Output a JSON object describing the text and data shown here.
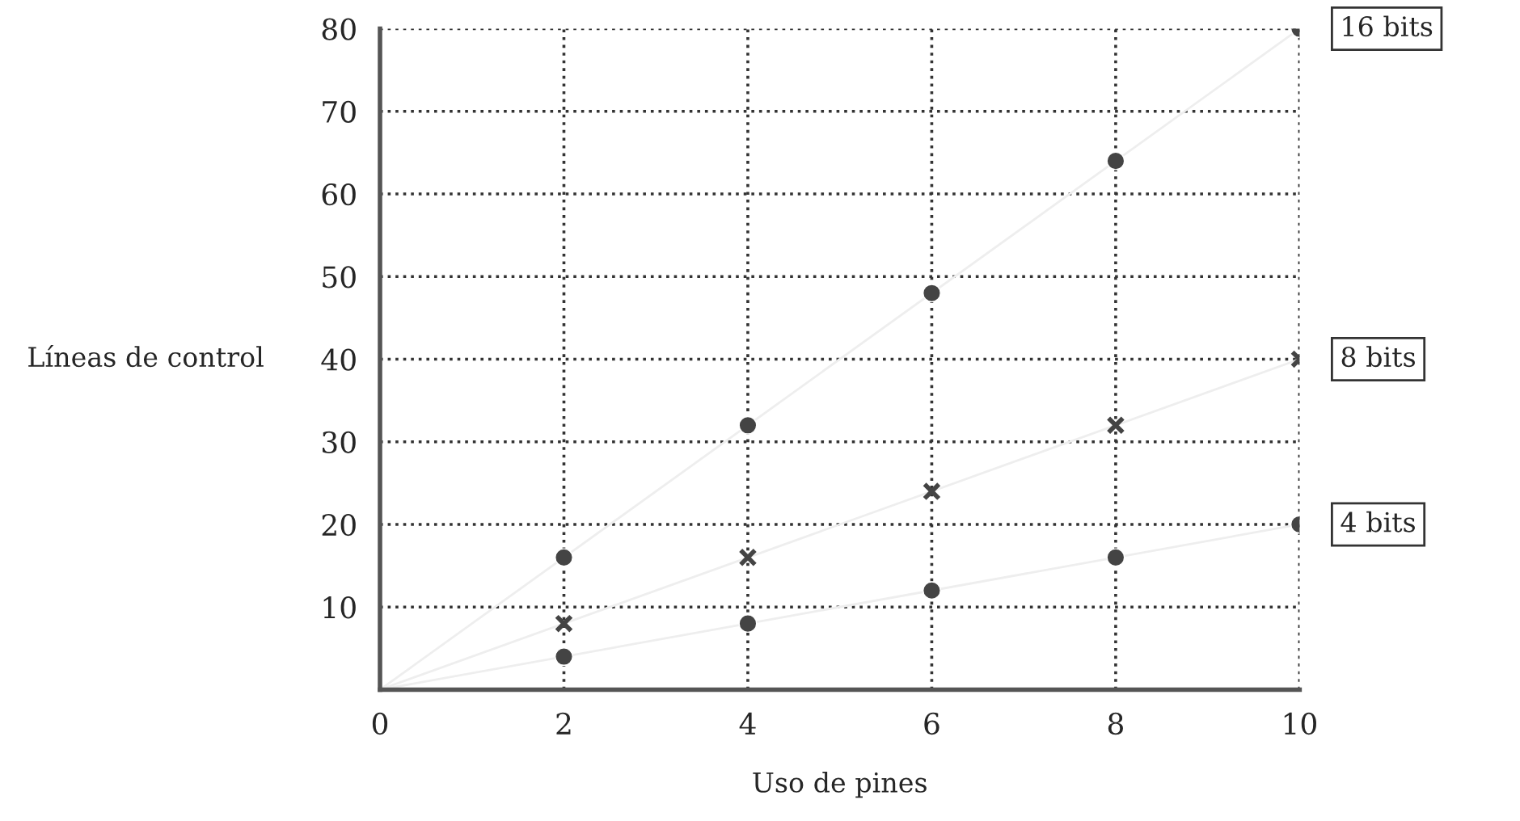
{
  "chart_data": {
    "type": "scatter",
    "xlabel": "Uso de pines",
    "ylabel": "Líneas de control",
    "xlim": [
      0,
      10
    ],
    "ylim": [
      0,
      80
    ],
    "xticks": [
      0,
      2,
      4,
      6,
      8,
      10
    ],
    "yticks": [
      10,
      20,
      30,
      40,
      50,
      60,
      70,
      80
    ],
    "grid": true,
    "legend": false,
    "series": [
      {
        "type": "line",
        "color": "#eeeeee",
        "x": [
          0,
          10
        ],
        "values": [
          0,
          80
        ],
        "marker": "none"
      },
      {
        "type": "line",
        "color": "#eeeeee",
        "x": [
          0,
          10
        ],
        "values": [
          0,
          40
        ],
        "marker": "none"
      },
      {
        "type": "line",
        "color": "#eeeeee",
        "x": [
          0,
          10
        ],
        "values": [
          0,
          20
        ],
        "marker": "none"
      },
      {
        "name": "16 bits",
        "color": "#444444",
        "x": [
          2,
          4,
          6,
          8,
          10
        ],
        "values": [
          16,
          32,
          48,
          64,
          80
        ],
        "marker": "circle"
      },
      {
        "name": "8 bits",
        "color": "#444444",
        "x": [
          2,
          4,
          6,
          8,
          10
        ],
        "values": [
          8,
          16,
          24,
          32,
          40
        ],
        "marker": "cross"
      },
      {
        "name": "4 bits",
        "color": "#444444",
        "x": [
          2,
          4,
          6,
          8,
          10
        ],
        "values": [
          4,
          8,
          12,
          16,
          20
        ],
        "marker": "circle"
      }
    ]
  }
}
